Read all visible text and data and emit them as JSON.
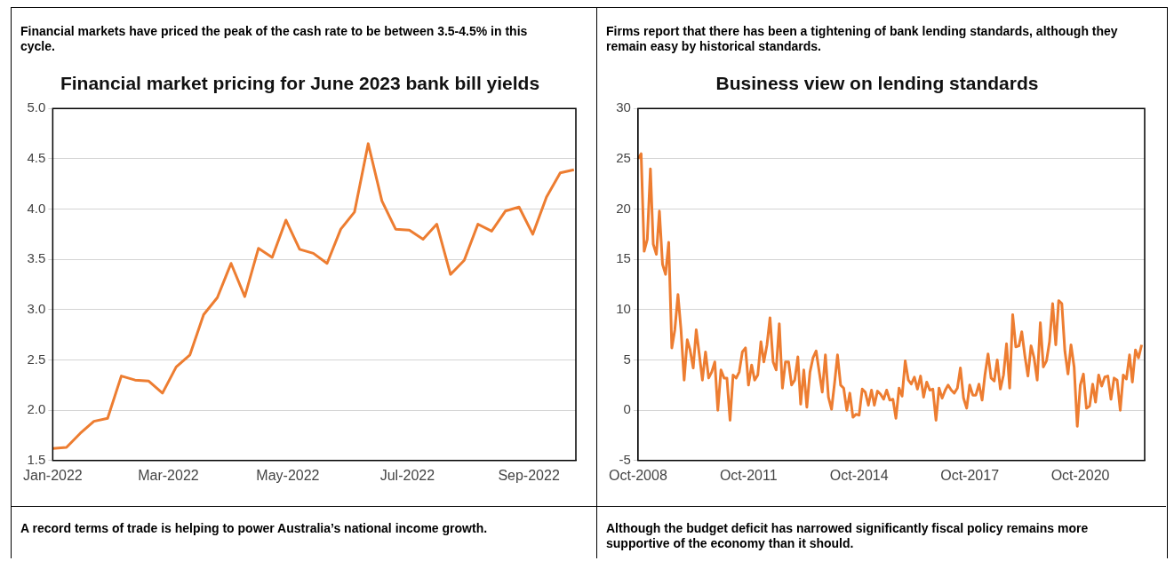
{
  "chart_data": [
    {
      "type": "line",
      "subtitle": "Financial markets have priced the peak of the cash rate to be between 3.5-4.5% in this cycle.",
      "title": "Financial market pricing for June 2023 bank bill yields",
      "marker": "none",
      "grid": "y",
      "x": [
        "2022-01-01",
        "2022-01-08",
        "2022-01-15",
        "2022-01-22",
        "2022-01-29",
        "2022-02-05",
        "2022-02-12",
        "2022-02-19",
        "2022-02-26",
        "2022-03-05",
        "2022-03-12",
        "2022-03-19",
        "2022-03-26",
        "2022-04-02",
        "2022-04-09",
        "2022-04-16",
        "2022-04-23",
        "2022-04-30",
        "2022-05-07",
        "2022-05-14",
        "2022-05-21",
        "2022-05-28",
        "2022-06-04",
        "2022-06-11",
        "2022-06-18",
        "2022-06-25",
        "2022-07-02",
        "2022-07-09",
        "2022-07-16",
        "2022-07-23",
        "2022-07-30",
        "2022-08-06",
        "2022-08-13",
        "2022-08-20",
        "2022-08-27",
        "2022-09-03",
        "2022-09-10",
        "2022-09-17",
        "2022-09-24"
      ],
      "series": [
        {
          "color": "#ed7d31",
          "values": [
            1.62,
            1.63,
            1.77,
            1.89,
            1.92,
            2.34,
            2.3,
            2.29,
            2.17,
            2.43,
            2.55,
            2.95,
            3.12,
            3.46,
            3.13,
            3.61,
            3.52,
            3.89,
            3.6,
            3.56,
            3.46,
            3.8,
            3.97,
            4.65,
            4.08,
            3.8,
            3.79,
            3.7,
            3.85,
            3.35,
            3.49,
            3.85,
            3.78,
            3.98,
            4.02,
            3.75,
            4.12,
            4.36,
            4.39
          ]
        }
      ],
      "xlim": [
        "2022-01-01",
        "2022-09-25"
      ],
      "xticks": [
        {
          "value": "2022-01-01",
          "label": "Jan-2022"
        },
        {
          "value": "2022-03-01",
          "label": "Mar-2022"
        },
        {
          "value": "2022-05-01",
          "label": "May-2022"
        },
        {
          "value": "2022-07-01",
          "label": "Jul-2022"
        },
        {
          "value": "2022-09-01",
          "label": "Sep-2022"
        }
      ],
      "ylim": [
        1.5,
        5
      ],
      "yticks": [
        1.5,
        {
          "value": 2,
          "label": "2.0"
        },
        2.5,
        {
          "value": 3,
          "label": "3.0"
        },
        3.5,
        {
          "value": 4,
          "label": "4.0"
        },
        4.5,
        {
          "value": 5,
          "label": "5.0"
        }
      ]
    },
    {
      "type": "line",
      "subtitle": "Firms report that there has been a tightening of bank lending standards, although they remain easy by historical standards.",
      "title": "Business view on lending standards",
      "marker": "none",
      "grid": "y",
      "x": [
        "2008-10",
        "2008-11",
        "2008-12",
        "2009-01",
        "2009-02",
        "2009-03",
        "2009-04",
        "2009-05",
        "2009-06",
        "2009-07",
        "2009-08",
        "2009-09",
        "2009-10",
        "2009-11",
        "2009-12",
        "2010-01",
        "2010-02",
        "2010-03",
        "2010-04",
        "2010-05",
        "2010-06",
        "2010-07",
        "2010-08",
        "2010-09",
        "2010-10",
        "2010-11",
        "2010-12",
        "2011-01",
        "2011-02",
        "2011-03",
        "2011-04",
        "2011-05",
        "2011-06",
        "2011-07",
        "2011-08",
        "2011-09",
        "2011-10",
        "2011-11",
        "2011-12",
        "2012-01",
        "2012-02",
        "2012-03",
        "2012-04",
        "2012-05",
        "2012-06",
        "2012-07",
        "2012-08",
        "2012-09",
        "2012-10",
        "2012-11",
        "2012-12",
        "2013-01",
        "2013-02",
        "2013-03",
        "2013-04",
        "2013-05",
        "2013-06",
        "2013-07",
        "2013-08",
        "2013-09",
        "2013-10",
        "2013-11",
        "2013-12",
        "2014-01",
        "2014-02",
        "2014-03",
        "2014-04",
        "2014-05",
        "2014-06",
        "2014-07",
        "2014-08",
        "2014-09",
        "2014-10",
        "2014-11",
        "2014-12",
        "2015-01",
        "2015-02",
        "2015-03",
        "2015-04",
        "2015-05",
        "2015-06",
        "2015-07",
        "2015-08",
        "2015-09",
        "2015-10",
        "2015-11",
        "2015-12",
        "2016-01",
        "2016-02",
        "2016-03",
        "2016-04",
        "2016-05",
        "2016-06",
        "2016-07",
        "2016-08",
        "2016-09",
        "2016-10",
        "2016-11",
        "2016-12",
        "2017-01",
        "2017-02",
        "2017-03",
        "2017-04",
        "2017-05",
        "2017-06",
        "2017-07",
        "2017-08",
        "2017-09",
        "2017-10",
        "2017-11",
        "2017-12",
        "2018-01",
        "2018-02",
        "2018-03",
        "2018-04",
        "2018-05",
        "2018-06",
        "2018-07",
        "2018-08",
        "2018-09",
        "2018-10",
        "2018-11",
        "2018-12",
        "2019-01",
        "2019-02",
        "2019-03",
        "2019-04",
        "2019-05",
        "2019-06",
        "2019-07",
        "2019-08",
        "2019-09",
        "2019-10",
        "2019-11",
        "2019-12",
        "2020-01",
        "2020-02",
        "2020-03",
        "2020-04",
        "2020-05",
        "2020-06",
        "2020-07",
        "2020-08",
        "2020-09",
        "2020-10",
        "2020-11",
        "2020-12",
        "2021-01",
        "2021-02",
        "2021-03",
        "2021-04",
        "2021-05",
        "2021-06",
        "2021-07",
        "2021-08",
        "2021-09",
        "2021-10",
        "2021-11",
        "2021-12",
        "2022-01",
        "2022-02",
        "2022-03",
        "2022-04",
        "2022-05",
        "2022-06"
      ],
      "series": [
        {
          "color": "#ed7d31",
          "values": [
            25,
            25.5,
            15.8,
            17,
            24,
            16.5,
            15.5,
            19.8,
            14.5,
            13.5,
            16.7,
            6.2,
            8,
            11.5,
            8,
            3,
            7,
            6,
            4.2,
            8,
            5.5,
            3,
            5.8,
            3.2,
            3.8,
            4.8,
            0,
            4,
            3.2,
            3.2,
            -1,
            3.5,
            3.2,
            3.8,
            5.8,
            6.2,
            2.5,
            4.5,
            3,
            3.5,
            6.8,
            4.8,
            6.5,
            9.2,
            4.8,
            4,
            8.6,
            2.2,
            4.8,
            4.8,
            2.5,
            3,
            5.3,
            0.6,
            4,
            0.3,
            3.8,
            5.2,
            5.9,
            3.8,
            1.8,
            5.5,
            1.3,
            0.1,
            2.8,
            5.5,
            2.5,
            2.2,
            0,
            1.7,
            -0.7,
            -0.4,
            -0.5,
            2.1,
            1.8,
            0.5,
            2,
            0.5,
            1.9,
            1.6,
            1.1,
            2,
            1,
            1.1,
            -0.8,
            2.2,
            1.4,
            4.9,
            3,
            2.6,
            3.3,
            2.1,
            3.4,
            1.3,
            2.8,
            2,
            2.1,
            -1,
            2.2,
            1.2,
            2,
            2.5,
            2,
            1.7,
            2.2,
            4.2,
            1.2,
            0.2,
            2.5,
            1.5,
            1.5,
            2.6,
            1,
            3.5,
            5.6,
            3.2,
            2.9,
            5,
            2.1,
            3.5,
            6.6,
            2.2,
            9.5,
            6.3,
            6.4,
            7.8,
            5.4,
            3.4,
            6.4,
            5.2,
            3,
            8.7,
            4.3,
            4.9,
            6.8,
            10.6,
            6.5,
            10.9,
            10.6,
            5.9,
            3.6,
            6.5,
            4.3,
            -1.6,
            2.5,
            3.6,
            0.2,
            0.4,
            2.6,
            0.8,
            3.5,
            2.4,
            3.3,
            3.4,
            1.1,
            3.2,
            3,
            0,
            3.5,
            3.1,
            5.5,
            2.8,
            6,
            5.2,
            6.5
          ]
        }
      ],
      "xlim": [
        "2008-10",
        "2022-07"
      ],
      "xticks": [
        {
          "value": "2008-10",
          "label": "Oct-2008"
        },
        {
          "value": "2011-10",
          "label": "Oct-2011"
        },
        {
          "value": "2014-10",
          "label": "Oct-2014"
        },
        {
          "value": "2017-10",
          "label": "Oct-2017"
        },
        {
          "value": "2020-10",
          "label": "Oct-2020"
        }
      ],
      "ylim": [
        -5,
        30
      ],
      "yticks": [
        -5,
        0,
        5,
        10,
        15,
        20,
        25,
        30
      ]
    },
    {
      "type": "other",
      "subtitle": "A record terms of trade is helping to power Australia’s national income growth."
    },
    {
      "type": "other",
      "subtitle": "Although the budget deficit has narrowed significantly fiscal policy remains more supportive of the economy than it should."
    }
  ]
}
